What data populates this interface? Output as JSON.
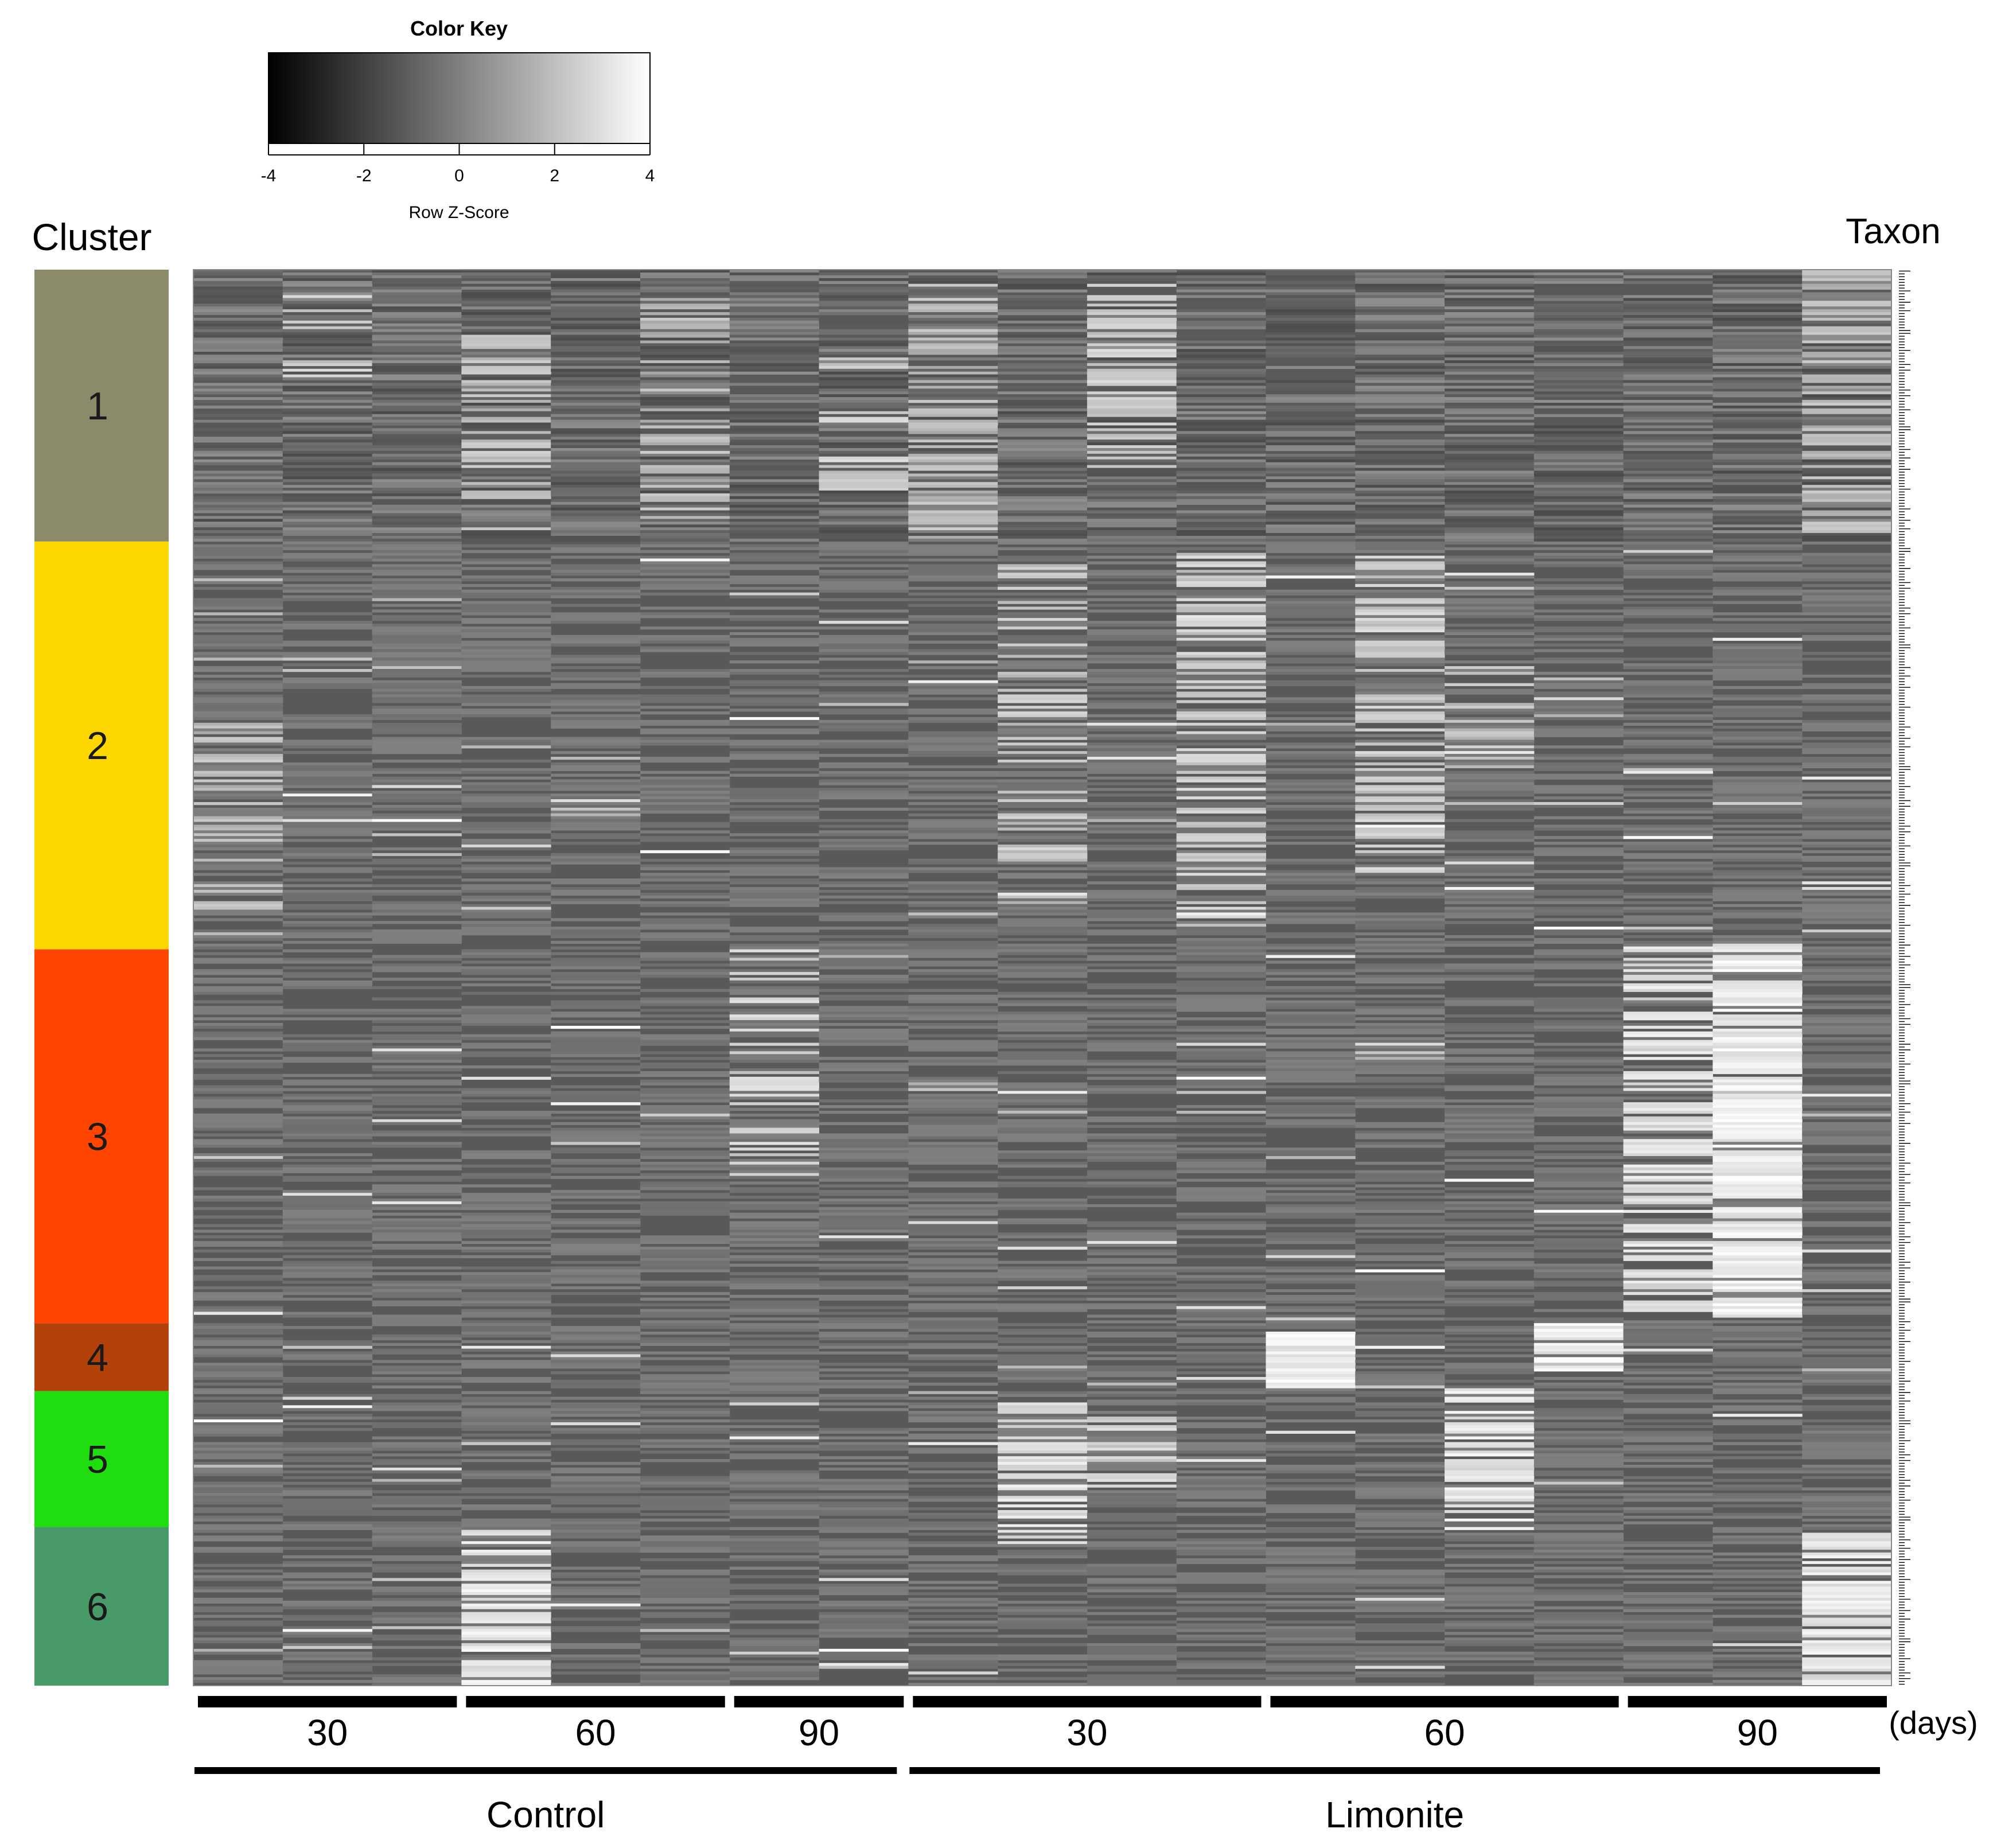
{
  "chart_data": {
    "type": "heatmap",
    "title": "",
    "color_key": {
      "title": "Color Key",
      "xlabel": "Row Z-Score",
      "ticks": [
        "-4",
        "-2",
        "0",
        "2",
        "4"
      ],
      "range": [
        -4,
        4
      ],
      "low_color": "#000000",
      "high_color": "#ffffff"
    },
    "row_side_label": "Cluster",
    "taxon_label": "Taxon",
    "clusters": [
      {
        "id": "1",
        "color": "#8b8a6b",
        "rows": 96
      },
      {
        "id": "2",
        "color": "#ffd700",
        "rows": 144
      },
      {
        "id": "3",
        "color": "#ff4500",
        "rows": 132
      },
      {
        "id": "4",
        "color": "#b3420a",
        "rows": 24
      },
      {
        "id": "5",
        "color": "#20dd10",
        "rows": 48
      },
      {
        "id": "6",
        "color": "#489a68",
        "rows": 56
      }
    ],
    "total_rows": 500,
    "columns": 19,
    "baseline_value": -0.25,
    "groups": [
      {
        "label": "Control",
        "days": [
          {
            "label": "30",
            "columns": [
              0,
              2
            ]
          },
          {
            "label": "60",
            "columns": [
              3,
              5
            ]
          },
          {
            "label": "90",
            "columns": [
              6,
              7
            ]
          }
        ]
      },
      {
        "label": "Limonite",
        "days": [
          {
            "label": "30",
            "columns": [
              8,
              11
            ]
          },
          {
            "label": "60",
            "columns": [
              12,
              15
            ]
          },
          {
            "label": "90",
            "columns": [
              16,
              18
            ]
          }
        ]
      }
    ],
    "days_unit": "(days)",
    "hotspots": [
      {
        "col": 0,
        "rows": [
          150,
          235
        ],
        "level": 2.5,
        "density": 0.35
      },
      {
        "col": 1,
        "rows": [
          5,
          40
        ],
        "level": 3.0,
        "density": 0.3
      },
      {
        "col": 3,
        "rows": [
          20,
          95
        ],
        "level": 2.6,
        "density": 0.4
      },
      {
        "col": 3,
        "rows": [
          445,
          500
        ],
        "level": 3.8,
        "density": 0.7
      },
      {
        "col": 5,
        "rows": [
          10,
          90
        ],
        "level": 2.4,
        "density": 0.4
      },
      {
        "col": 6,
        "rows": [
          240,
          320
        ],
        "level": 3.2,
        "density": 0.3
      },
      {
        "col": 7,
        "rows": [
          30,
          80
        ],
        "level": 3.0,
        "density": 0.3
      },
      {
        "col": 8,
        "rows": [
          0,
          95
        ],
        "level": 2.5,
        "density": 0.45
      },
      {
        "col": 9,
        "rows": [
          100,
          230
        ],
        "level": 2.8,
        "density": 0.35
      },
      {
        "col": 9,
        "rows": [
          400,
          450
        ],
        "level": 3.6,
        "density": 0.55
      },
      {
        "col": 10,
        "rows": [
          0,
          70
        ],
        "level": 3.0,
        "density": 0.55
      },
      {
        "col": 10,
        "rows": [
          405,
          430
        ],
        "level": 3.2,
        "density": 0.5
      },
      {
        "col": 11,
        "rows": [
          100,
          230
        ],
        "level": 3.0,
        "density": 0.45
      },
      {
        "col": 12,
        "rows": [
          375,
          395
        ],
        "level": 4.0,
        "density": 0.9
      },
      {
        "col": 13,
        "rows": [
          100,
          215
        ],
        "level": 3.0,
        "density": 0.45
      },
      {
        "col": 14,
        "rows": [
          140,
          175
        ],
        "level": 2.6,
        "density": 0.45
      },
      {
        "col": 14,
        "rows": [
          395,
          445
        ],
        "level": 3.8,
        "density": 0.6
      },
      {
        "col": 15,
        "rows": [
          372,
          390
        ],
        "level": 4.0,
        "density": 0.85
      },
      {
        "col": 16,
        "rows": [
          238,
          370
        ],
        "level": 3.6,
        "density": 0.65
      },
      {
        "col": 17,
        "rows": [
          238,
          370
        ],
        "level": 4.0,
        "density": 0.85
      },
      {
        "col": 18,
        "rows": [
          0,
          95
        ],
        "level": 2.4,
        "density": 0.45
      },
      {
        "col": 18,
        "rows": [
          445,
          500
        ],
        "level": 3.8,
        "density": 0.7
      }
    ]
  }
}
